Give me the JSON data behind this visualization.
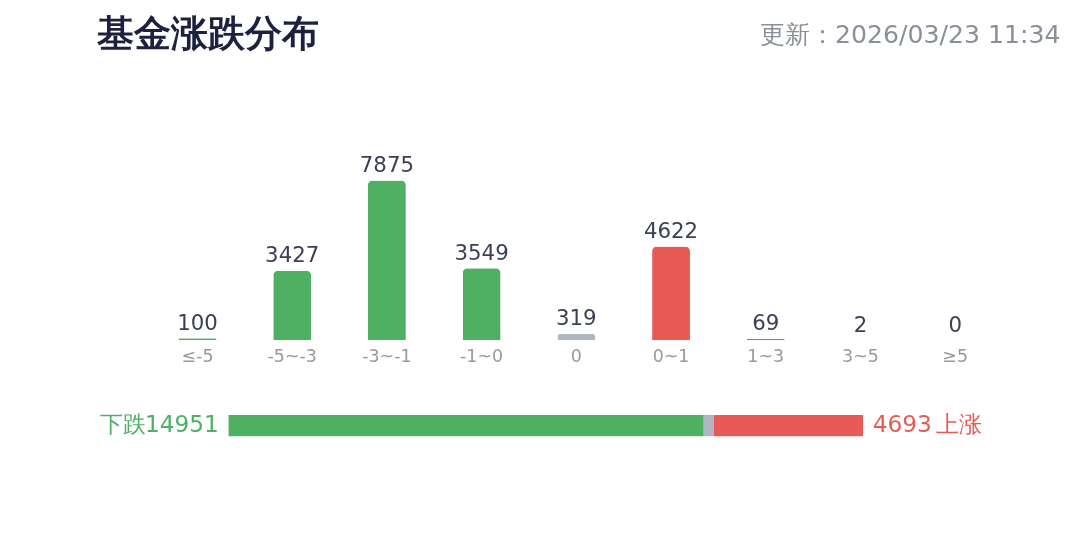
{
  "chart_data": [
    {
      "type": "bar",
      "title": "基金涨跌分布",
      "annotations": [
        "更新：2026/03/23 11:34"
      ],
      "categories": [
        "≤-5",
        "-5~-3",
        "-3~-1",
        "-1~0",
        "0",
        "0~1",
        "1~3",
        "3~5",
        "≥5"
      ],
      "values": [
        100,
        3427,
        7875,
        3549,
        319,
        4622,
        69,
        2,
        0
      ],
      "colors": [
        "#4fb064",
        "#4fb064",
        "#4fb064",
        "#4fb064",
        "#b0b7c3",
        "#e85a55",
        "#e85a55",
        "#e85a55",
        "#e85a55"
      ],
      "data_labels": true
    },
    {
      "type": "bar",
      "orientation": "horizontal",
      "stacked": true,
      "categories": [
        null
      ],
      "series": [
        {
          "name": "下跌",
          "color": "#4fb064",
          "values": [
            14951
          ],
          "value_labels": [
            "14951"
          ]
        },
        {
          "color": "#b0b7c3",
          "values": [
            319
          ],
          "value_labels": [
            null
          ]
        },
        {
          "name": "上涨",
          "color": "#e85a55",
          "values": [
            4693
          ],
          "value_labels": [
            "4693"
          ]
        }
      ]
    }
  ]
}
